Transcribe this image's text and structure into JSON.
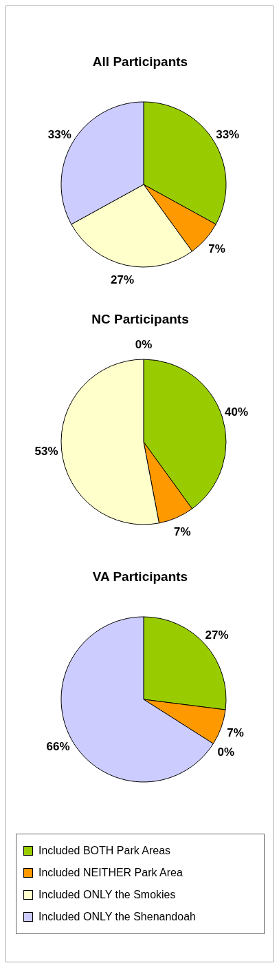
{
  "chart_data": [
    {
      "type": "pie",
      "title": "All Participants",
      "categories": [
        null,
        null,
        null,
        null
      ],
      "values": [
        33,
        7,
        27,
        33
      ],
      "value_labels": [
        "33%",
        "7%",
        "27%",
        "33%"
      ],
      "colors": [
        "#99cc00",
        "#ff9900",
        "#ffffcc",
        "#ccccff"
      ]
    },
    {
      "type": "pie",
      "title": "NC Participants",
      "categories": [
        null,
        null,
        null,
        null
      ],
      "values": [
        40,
        7,
        53,
        0
      ],
      "value_labels": [
        "40%",
        "7%",
        "53%",
        "0%"
      ],
      "colors": [
        "#99cc00",
        "#ff9900",
        "#ffffcc",
        "#ccccff"
      ]
    },
    {
      "type": "pie",
      "title": "VA Participants",
      "categories": [
        "Included BOTH Park Areas",
        "Included NEITHER Park Area",
        "Included ONLY the Smokies",
        "Included ONLY the Shenandoah"
      ],
      "values": [
        27,
        7,
        0,
        66
      ],
      "value_labels": [
        "27%",
        "7%",
        "0%",
        "66%"
      ],
      "colors": [
        "#99cc00",
        "#ff9900",
        "#ffffcc",
        "#ccccff"
      ],
      "legend": "bottom"
    }
  ]
}
